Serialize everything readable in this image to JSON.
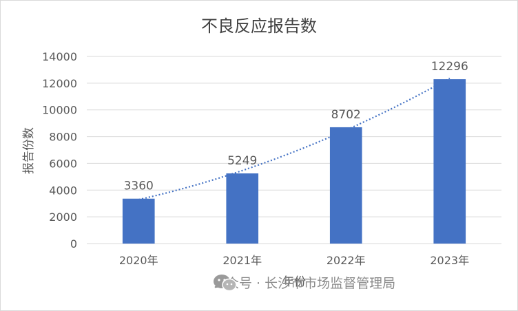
{
  "chart_data": {
    "type": "bar",
    "title": "不良反应报告数",
    "xlabel": "年份",
    "ylabel": "报告份数",
    "categories": [
      "2020年",
      "2021年",
      "2022年",
      "2023年"
    ],
    "values": [
      3360,
      5249,
      8702,
      12296
    ],
    "data_labels": [
      "3360",
      "5249",
      "8702",
      "12296"
    ],
    "ylim": [
      0,
      14000
    ],
    "yticks": [
      "0",
      "2000",
      "4000",
      "6000",
      "8000",
      "10000",
      "12000",
      "14000"
    ],
    "ytick_values": [
      0,
      2000,
      4000,
      6000,
      8000,
      10000,
      12000,
      14000
    ],
    "grid": true,
    "trendline": "polynomial",
    "colors": {
      "bar": "#4472c4",
      "trendline": "#4472c4",
      "grid": "#d9d9d9",
      "text": "#595959",
      "title": "#404040"
    }
  },
  "watermark": {
    "text": "公众号 · 长沙市市场监督管理局",
    "icon": "wechat-icon"
  }
}
